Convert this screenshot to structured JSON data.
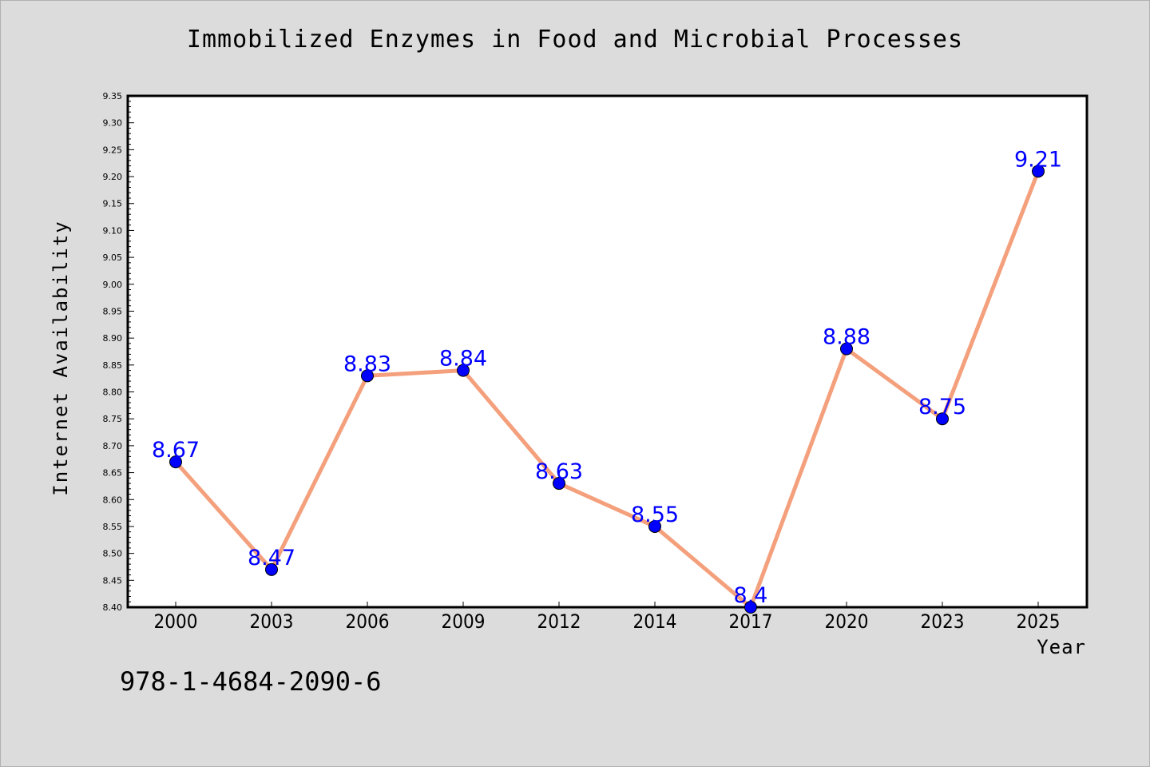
{
  "chart_data": {
    "type": "line",
    "title": "Immobilized Enzymes in Food and Microbial Processes",
    "xlabel": "Year",
    "ylabel": "Internet Availability",
    "categories": [
      "2000",
      "2003",
      "2006",
      "2009",
      "2012",
      "2014",
      "2017",
      "2020",
      "2023",
      "2025"
    ],
    "values": [
      8.67,
      8.47,
      8.83,
      8.84,
      8.63,
      8.55,
      8.4,
      8.88,
      8.75,
      9.21
    ],
    "data_labels": [
      "8.67",
      "8.47",
      "8.83",
      "8.84",
      "8.63",
      "8.55",
      "8.4",
      "8.88",
      "8.75",
      "9.21"
    ],
    "ylim": [
      8.4,
      9.35
    ],
    "y_ticks": [
      "8.40",
      "8.45",
      "8.50",
      "8.55",
      "8.60",
      "8.65",
      "8.70",
      "8.75",
      "8.80",
      "8.85",
      "8.90",
      "8.95",
      "9.00",
      "9.05",
      "9.10",
      "9.15",
      "9.20",
      "9.25",
      "9.30",
      "9.35"
    ],
    "grid": false,
    "legend": "none",
    "colors": {
      "line": "#f4a07c",
      "marker": "#0000ff",
      "marker_edge": "#000000",
      "label": "#0000ff",
      "background": "#dcdcdc",
      "plot_background": "#ffffff"
    }
  },
  "annotation": "978-1-4684-2090-6"
}
